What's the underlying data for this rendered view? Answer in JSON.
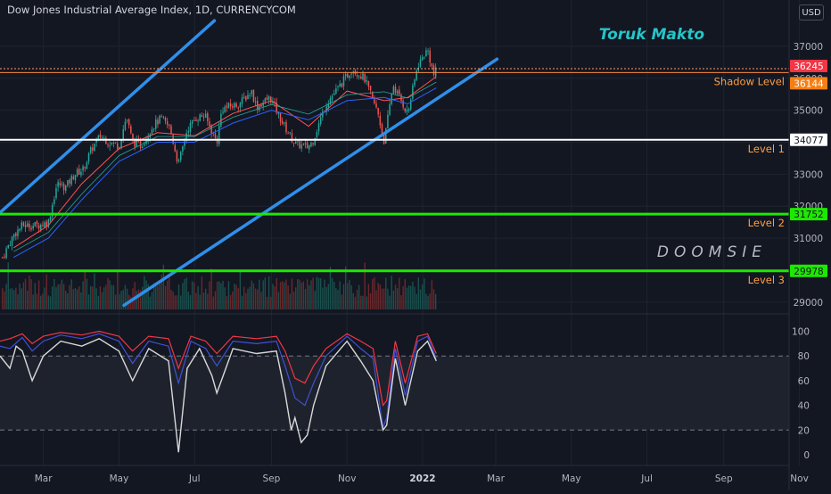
{
  "window": {
    "title": "Dow Jones Industrial Average Index, 1D, CURRENCYCOM",
    "currency": "USD"
  },
  "colors": {
    "background": "#131722",
    "channel": "#2f8fea",
    "level_white": "#ffffff",
    "level_green": "#1ee800",
    "shadow_line": "#ff8a3d",
    "price_badge": "#f23645",
    "shadow_badge": "#f57f17",
    "candle_up": "#26a69a",
    "candle_down": "#ef5350",
    "text_orange": "#ff9e40",
    "rsi_red": "#f23645",
    "rsi_blue": "#3f51d6",
    "rsi_white": "#d9d9d9"
  },
  "annotations": {
    "toruk": "Toruk Makto",
    "doomsie": "DOOMSIE",
    "shadow_label": "Shadow Level",
    "level1_label": "Level 1",
    "level2_label": "Level 2",
    "level3_label": "Level 3"
  },
  "chart_data": [
    {
      "type": "candlestick",
      "title": "Dow Jones Industrial Average Index, 1D, CURRENCYCOM",
      "x_range": [
        "2021-01-25",
        "2022-10-10"
      ],
      "ylim": [
        28800,
        37500
      ],
      "y_ticks": [
        29000,
        30000,
        31000,
        32000,
        33000,
        34000,
        35000,
        36000,
        37000
      ],
      "x_ticks": [
        "Mar",
        "May",
        "Jul",
        "Sep",
        "Nov",
        "2022",
        "Mar",
        "May",
        "Jul",
        "Sep",
        "Nov"
      ],
      "price_path": [
        [
          "2021-01-27",
          30400
        ],
        [
          "2021-02-05",
          31100
        ],
        [
          "2021-02-12",
          31400
        ],
        [
          "2021-02-25",
          31400
        ],
        [
          "2021-03-05",
          31500
        ],
        [
          "2021-03-12",
          32700
        ],
        [
          "2021-03-19",
          32600
        ],
        [
          "2021-03-26",
          33000
        ],
        [
          "2021-04-02",
          33150
        ],
        [
          "2021-04-09",
          33800
        ],
        [
          "2021-04-16",
          34200
        ],
        [
          "2021-04-23",
          34000
        ],
        [
          "2021-05-01",
          33900
        ],
        [
          "2021-05-07",
          34800
        ],
        [
          "2021-05-12",
          34000
        ],
        [
          "2021-05-19",
          33900
        ],
        [
          "2021-05-28",
          34500
        ],
        [
          "2021-06-04",
          34750
        ],
        [
          "2021-06-11",
          34450
        ],
        [
          "2021-06-18",
          33300
        ],
        [
          "2021-06-25",
          34400
        ],
        [
          "2021-07-02",
          34750
        ],
        [
          "2021-07-09",
          34850
        ],
        [
          "2021-07-19",
          34000
        ],
        [
          "2021-07-23",
          35050
        ],
        [
          "2021-08-06",
          35200
        ],
        [
          "2021-08-16",
          35600
        ],
        [
          "2021-08-20",
          35100
        ],
        [
          "2021-08-31",
          35400
        ],
        [
          "2021-09-10",
          34600
        ],
        [
          "2021-09-20",
          33950
        ],
        [
          "2021-09-30",
          33850
        ],
        [
          "2021-10-04",
          34000
        ],
        [
          "2021-10-15",
          35200
        ],
        [
          "2021-10-25",
          35700
        ],
        [
          "2021-11-05",
          36300
        ],
        [
          "2021-11-15",
          36000
        ],
        [
          "2021-11-26",
          34900
        ],
        [
          "2021-12-01",
          34000
        ],
        [
          "2021-12-08",
          35800
        ],
        [
          "2021-12-20",
          34900
        ],
        [
          "2021-12-28",
          36400
        ],
        [
          "2022-01-05",
          36900
        ],
        [
          "2022-01-10",
          36100
        ],
        [
          "2022-01-12",
          36250
        ]
      ],
      "ma_fast": [
        [
          "2021-02-05",
          30700
        ],
        [
          "2021-03-05",
          31400
        ],
        [
          "2021-04-01",
          32700
        ],
        [
          "2021-05-01",
          33800
        ],
        [
          "2021-06-01",
          34300
        ],
        [
          "2021-07-01",
          34200
        ],
        [
          "2021-08-01",
          34900
        ],
        [
          "2021-09-01",
          35300
        ],
        [
          "2021-10-01",
          34500
        ],
        [
          "2021-11-01",
          35600
        ],
        [
          "2021-12-01",
          35300
        ],
        [
          "2021-12-20",
          35400
        ],
        [
          "2022-01-12",
          36050
        ]
      ],
      "ma_slow": [
        [
          "2021-02-05",
          30400
        ],
        [
          "2021-03-05",
          31000
        ],
        [
          "2021-04-01",
          32200
        ],
        [
          "2021-05-01",
          33400
        ],
        [
          "2021-06-01",
          34000
        ],
        [
          "2021-07-01",
          34000
        ],
        [
          "2021-08-01",
          34600
        ],
        [
          "2021-09-01",
          35000
        ],
        [
          "2021-10-01",
          34700
        ],
        [
          "2021-11-01",
          35300
        ],
        [
          "2021-12-01",
          35400
        ],
        [
          "2021-12-20",
          35200
        ],
        [
          "2022-01-12",
          35700
        ]
      ],
      "channel_upper": [
        [
          "2021-01-25",
          31800
        ],
        [
          "2021-07-17",
          37800
        ]
      ],
      "channel_lower": [
        [
          "2021-05-05",
          28900
        ],
        [
          "2022-03-02",
          36600
        ]
      ],
      "horizontal_levels": [
        {
          "name": "Shadow Level",
          "value": 36144
        },
        {
          "name": "Level 1",
          "value": 34077
        },
        {
          "name": "Level 2",
          "value": 31752
        },
        {
          "name": "Level 3",
          "value": 29978
        }
      ],
      "last_price": 36245,
      "last_price_ref": 36300,
      "shadow_ref": 36180
    },
    {
      "type": "line",
      "ylim": [
        0,
        104
      ],
      "y_ticks": [
        0,
        20,
        40,
        60,
        80,
        100
      ],
      "reference_lines": [
        80,
        20
      ],
      "series": [
        {
          "color": "#f23645",
          "points": [
            [
              "2021-01-25",
              92
            ],
            [
              "2021-02-02",
              94
            ],
            [
              "2021-02-12",
              98
            ],
            [
              "2021-02-20",
              90
            ],
            [
              "2021-03-01",
              96
            ],
            [
              "2021-03-15",
              99
            ],
            [
              "2021-04-01",
              97
            ],
            [
              "2021-04-15",
              100
            ],
            [
              "2021-05-01",
              96
            ],
            [
              "2021-05-12",
              84
            ],
            [
              "2021-05-25",
              96
            ],
            [
              "2021-06-10",
              94
            ],
            [
              "2021-06-18",
              70
            ],
            [
              "2021-06-28",
              96
            ],
            [
              "2021-07-10",
              92
            ],
            [
              "2021-07-19",
              82
            ],
            [
              "2021-08-01",
              96
            ],
            [
              "2021-08-20",
              94
            ],
            [
              "2021-09-05",
              96
            ],
            [
              "2021-09-12",
              84
            ],
            [
              "2021-09-20",
              62
            ],
            [
              "2021-09-28",
              58
            ],
            [
              "2021-10-05",
              72
            ],
            [
              "2021-10-15",
              86
            ],
            [
              "2021-11-01",
              98
            ],
            [
              "2021-11-12",
              92
            ],
            [
              "2021-11-22",
              86
            ],
            [
              "2021-11-30",
              40
            ],
            [
              "2021-12-03",
              44
            ],
            [
              "2021-12-10",
              92
            ],
            [
              "2021-12-18",
              58
            ],
            [
              "2021-12-28",
              96
            ],
            [
              "2022-01-05",
              98
            ],
            [
              "2022-01-12",
              82
            ]
          ]
        },
        {
          "color": "#3f51d6",
          "points": [
            [
              "2021-01-25",
              88
            ],
            [
              "2021-02-02",
              86
            ],
            [
              "2021-02-12",
              95
            ],
            [
              "2021-02-20",
              84
            ],
            [
              "2021-03-01",
              92
            ],
            [
              "2021-03-15",
              97
            ],
            [
              "2021-04-01",
              94
            ],
            [
              "2021-04-15",
              98
            ],
            [
              "2021-05-01",
              92
            ],
            [
              "2021-05-12",
              74
            ],
            [
              "2021-05-25",
              92
            ],
            [
              "2021-06-10",
              88
            ],
            [
              "2021-06-18",
              58
            ],
            [
              "2021-06-28",
              92
            ],
            [
              "2021-07-10",
              86
            ],
            [
              "2021-07-19",
              72
            ],
            [
              "2021-08-01",
              92
            ],
            [
              "2021-08-20",
              90
            ],
            [
              "2021-09-05",
              92
            ],
            [
              "2021-09-12",
              72
            ],
            [
              "2021-09-20",
              46
            ],
            [
              "2021-09-28",
              40
            ],
            [
              "2021-10-05",
              58
            ],
            [
              "2021-10-15",
              80
            ],
            [
              "2021-11-01",
              96
            ],
            [
              "2021-11-12",
              86
            ],
            [
              "2021-11-22",
              78
            ],
            [
              "2021-11-30",
              22
            ],
            [
              "2021-12-03",
              30
            ],
            [
              "2021-12-10",
              86
            ],
            [
              "2021-12-18",
              48
            ],
            [
              "2021-12-28",
              92
            ],
            [
              "2022-01-05",
              96
            ],
            [
              "2022-01-12",
              78
            ]
          ]
        },
        {
          "color": "#d9d9d9",
          "points": [
            [
              "2021-01-25",
              80
            ],
            [
              "2021-02-02",
              70
            ],
            [
              "2021-02-07",
              88
            ],
            [
              "2021-02-12",
              84
            ],
            [
              "2021-02-20",
              60
            ],
            [
              "2021-03-01",
              80
            ],
            [
              "2021-03-15",
              92
            ],
            [
              "2021-04-01",
              88
            ],
            [
              "2021-04-15",
              94
            ],
            [
              "2021-05-01",
              84
            ],
            [
              "2021-05-12",
              60
            ],
            [
              "2021-05-25",
              86
            ],
            [
              "2021-06-10",
              76
            ],
            [
              "2021-06-18",
              2
            ],
            [
              "2021-06-25",
              70
            ],
            [
              "2021-07-05",
              86
            ],
            [
              "2021-07-15",
              64
            ],
            [
              "2021-07-19",
              50
            ],
            [
              "2021-08-01",
              86
            ],
            [
              "2021-08-20",
              82
            ],
            [
              "2021-09-05",
              84
            ],
            [
              "2021-09-12",
              50
            ],
            [
              "2021-09-17",
              20
            ],
            [
              "2021-09-20",
              30
            ],
            [
              "2021-09-25",
              10
            ],
            [
              "2021-09-30",
              16
            ],
            [
              "2021-10-05",
              40
            ],
            [
              "2021-10-15",
              72
            ],
            [
              "2021-11-01",
              92
            ],
            [
              "2021-11-12",
              76
            ],
            [
              "2021-11-22",
              60
            ],
            [
              "2021-11-30",
              20
            ],
            [
              "2021-12-03",
              24
            ],
            [
              "2021-12-10",
              78
            ],
            [
              "2021-12-18",
              40
            ],
            [
              "2021-12-28",
              84
            ],
            [
              "2022-01-05",
              92
            ],
            [
              "2022-01-12",
              76
            ]
          ]
        }
      ]
    }
  ]
}
